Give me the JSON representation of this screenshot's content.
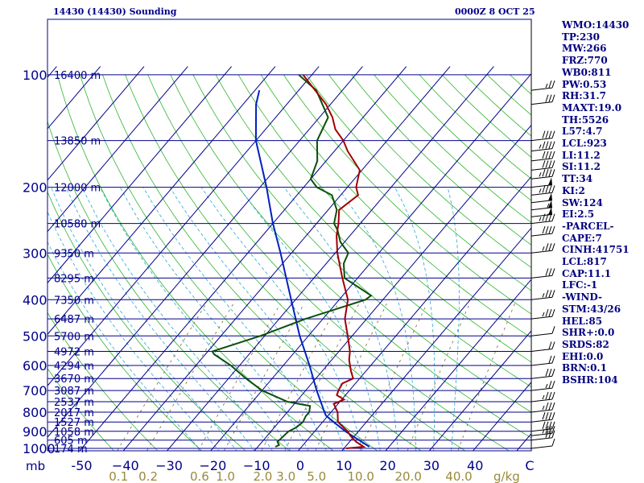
{
  "header": {
    "left": "14430 (14430) Sounding",
    "right": "0000Z  8 OCT 25"
  },
  "colors": {
    "temperature": "#a00000",
    "dewpoint": "#0b4f0b",
    "parcel": "#0020c0",
    "isobar": "#00008b",
    "isotherm": "#00008b",
    "dry_adiabat": "#2db52d",
    "moist_adiabat": "#2aa7d6",
    "mixing_ratio": "#7a6a30",
    "axis_text": "#00008b",
    "mixing_text": "#9a8a3a"
  },
  "chart_data": {
    "type": "skew-t",
    "pressure_axis": {
      "label": "mb",
      "levels": [
        100,
        200,
        300,
        400,
        500,
        600,
        700,
        800,
        900,
        1000
      ]
    },
    "temperature_axis": {
      "ticks": [
        -50,
        -40,
        -30,
        -20,
        -10,
        0,
        10,
        20,
        30,
        40
      ],
      "tick_labels": [
        "-50",
        "−40",
        "−30",
        "−20",
        "−10",
        "0",
        "10",
        "20",
        "30",
        "40"
      ],
      "unit_label": "C"
    },
    "mixing_ratio_axis": {
      "values": [
        0.1,
        0.2,
        0.6,
        1.0,
        2.0,
        3.0,
        5.0,
        10.0,
        20.0,
        40.0
      ],
      "labels": [
        "0.1",
        "0.2",
        "0.6",
        "1.0",
        "2.0",
        "3.0",
        "5.0",
        "10.0",
        "20.0",
        "40.0"
      ],
      "unit_label": "g/kg"
    },
    "height_labels": [
      {
        "p": 100,
        "label": "16400 m"
      },
      {
        "p": 150,
        "label": "13850 m"
      },
      {
        "p": 200,
        "label": "12000 m"
      },
      {
        "p": 250,
        "label": "10580 m"
      },
      {
        "p": 300,
        "label": "9350 m"
      },
      {
        "p": 350,
        "label": "8295 m"
      },
      {
        "p": 400,
        "label": "7350 m"
      },
      {
        "p": 450,
        "label": "6487 m"
      },
      {
        "p": 500,
        "label": "5700 m"
      },
      {
        "p": 550,
        "label": "4972 m"
      },
      {
        "p": 600,
        "label": "4294 m"
      },
      {
        "p": 650,
        "label": "3670 m"
      },
      {
        "p": 700,
        "label": "3087 m"
      },
      {
        "p": 750,
        "label": "2537 m"
      },
      {
        "p": 800,
        "label": "2017 m"
      },
      {
        "p": 850,
        "label": "1527 m"
      },
      {
        "p": 900,
        "label": "1058 m"
      },
      {
        "p": 950,
        "label": "605 m"
      },
      {
        "p": 1000,
        "label": "174 m"
      }
    ],
    "temperature_profile": [
      [
        1000,
        10.5
      ],
      [
        990,
        14.2
      ],
      [
        960,
        11.5
      ],
      [
        925,
        9
      ],
      [
        900,
        7.5
      ],
      [
        850,
        3.5
      ],
      [
        800,
        1.5
      ],
      [
        760,
        -1
      ],
      [
        740,
        0.5
      ],
      [
        720,
        -2
      ],
      [
        700,
        -2.5
      ],
      [
        670,
        -3
      ],
      [
        650,
        -1.5
      ],
      [
        620,
        -3.5
      ],
      [
        580,
        -6
      ],
      [
        550,
        -7.5
      ],
      [
        500,
        -11
      ],
      [
        450,
        -15
      ],
      [
        400,
        -18
      ],
      [
        350,
        -23.5
      ],
      [
        300,
        -29.5
      ],
      [
        270,
        -33
      ],
      [
        250,
        -35
      ],
      [
        230,
        -37.5
      ],
      [
        210,
        -36
      ],
      [
        200,
        -38
      ],
      [
        180,
        -40.5
      ],
      [
        160,
        -47
      ],
      [
        150,
        -50
      ],
      [
        140,
        -54
      ],
      [
        130,
        -57
      ],
      [
        120,
        -61
      ],
      [
        100,
        -72
      ]
    ],
    "dewpoint_profile": [
      [
        990,
        -6
      ],
      [
        980,
        -5.5
      ],
      [
        960,
        -6.5
      ],
      [
        900,
        -6
      ],
      [
        880,
        -5
      ],
      [
        850,
        -4.5
      ],
      [
        820,
        -5
      ],
      [
        800,
        -5
      ],
      [
        770,
        -6
      ],
      [
        750,
        -12
      ],
      [
        700,
        -20
      ],
      [
        650,
        -26
      ],
      [
        600,
        -32
      ],
      [
        560,
        -38
      ],
      [
        550,
        -39
      ],
      [
        500,
        -31
      ],
      [
        450,
        -24
      ],
      [
        400,
        -14
      ],
      [
        390,
        -13.5
      ],
      [
        350,
        -23
      ],
      [
        320,
        -26
      ],
      [
        300,
        -27
      ],
      [
        280,
        -31
      ],
      [
        260,
        -34
      ],
      [
        250,
        -36
      ],
      [
        230,
        -38
      ],
      [
        210,
        -42
      ],
      [
        200,
        -47
      ],
      [
        190,
        -50
      ],
      [
        170,
        -52
      ],
      [
        150,
        -56
      ],
      [
        130,
        -58
      ],
      [
        110,
        -66
      ],
      [
        100,
        -73
      ]
    ],
    "parcel_profile": [
      [
        990,
        15.5
      ],
      [
        950,
        11.8
      ],
      [
        900,
        7
      ],
      [
        850,
        2.5
      ],
      [
        817,
        -0.5
      ],
      [
        800,
        -1.5
      ],
      [
        700,
        -7.5
      ],
      [
        600,
        -14
      ],
      [
        500,
        -22
      ],
      [
        400,
        -31
      ],
      [
        300,
        -42.5
      ],
      [
        250,
        -50
      ],
      [
        200,
        -58.5
      ],
      [
        150,
        -70
      ],
      [
        120,
        -77
      ],
      [
        110,
        -79
      ]
    ],
    "wind_barbs": [
      {
        "p": 1000,
        "spd": 10
      },
      {
        "p": 950,
        "spd": 30
      },
      {
        "p": 925,
        "spd": 35
      },
      {
        "p": 900,
        "spd": 40
      },
      {
        "p": 850,
        "spd": 40
      },
      {
        "p": 800,
        "spd": 35
      },
      {
        "p": 750,
        "spd": 35
      },
      {
        "p": 700,
        "spd": 25
      },
      {
        "p": 650,
        "spd": 30
      },
      {
        "p": 600,
        "spd": 20
      },
      {
        "p": 550,
        "spd": 20
      },
      {
        "p": 500,
        "spd": 10
      },
      {
        "p": 450,
        "spd": 35
      },
      {
        "p": 400,
        "spd": 35
      },
      {
        "p": 350,
        "spd": 30
      },
      {
        "p": 300,
        "spd": 35
      },
      {
        "p": 270,
        "spd": 40
      },
      {
        "p": 250,
        "spd": 45
      },
      {
        "p": 240,
        "spd": 50
      },
      {
        "p": 230,
        "spd": 55
      },
      {
        "p": 220,
        "spd": 50
      },
      {
        "p": 210,
        "spd": 45
      },
      {
        "p": 200,
        "spd": 50
      },
      {
        "p": 190,
        "spd": 45
      },
      {
        "p": 180,
        "spd": 40
      },
      {
        "p": 170,
        "spd": 40
      },
      {
        "p": 160,
        "spd": 45
      },
      {
        "p": 150,
        "spd": 40
      },
      {
        "p": 120,
        "spd": 30
      },
      {
        "p": 110,
        "spd": 25
      }
    ]
  },
  "indices": [
    "WMO:14430",
    "TP:230",
    "MW:266",
    "FRZ:770",
    "WB0:811",
    "PW:0.53",
    "RH:31.7",
    "MAXT:19.0",
    "TH:5526",
    "L57:4.7",
    "LCL:923",
    "LI:11.2",
    "SI:11.2",
    "TT:34",
    "KI:2",
    "SW:124",
    "EI:2.5",
    "-PARCEL-",
    "CAPE:7",
    "CINH:41751",
    "LCL:817",
    "CAP:11.1",
    "LFC:-1",
    "-WIND-",
    "STM:43/26",
    "HEL:85",
    "SHR+:0.0",
    "SRDS:82",
    "EHI:0.0",
    "BRN:0.1",
    "BSHR:104"
  ]
}
